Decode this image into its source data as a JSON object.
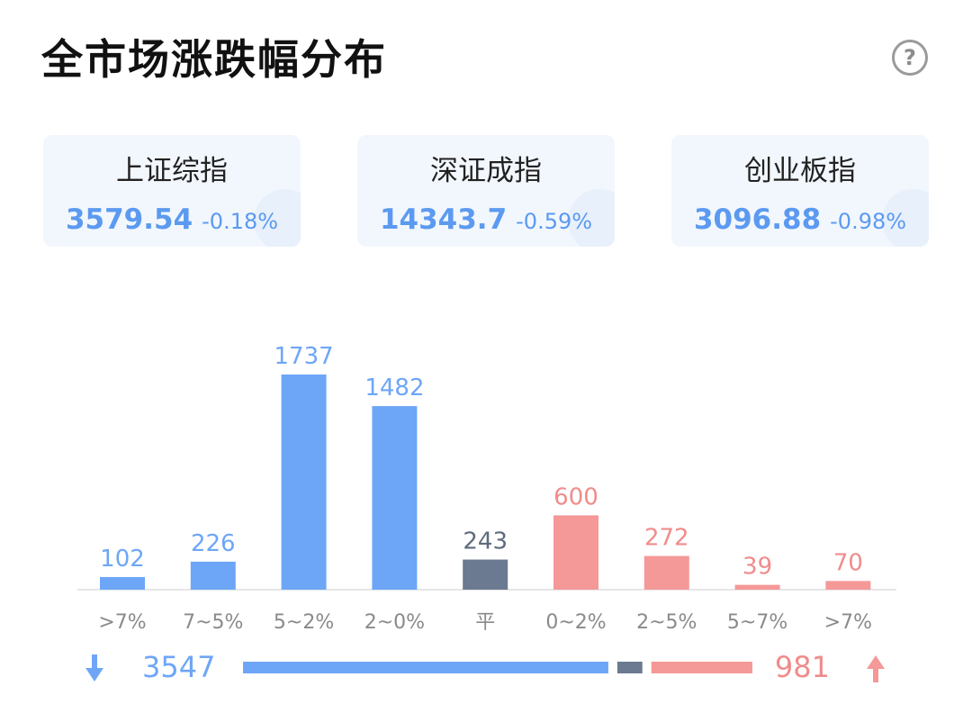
{
  "title": "全市场涨跌幅分布",
  "help_icon": "question-circle-icon",
  "indices": [
    {
      "name": "上证综指",
      "value": "3579.54",
      "change": "-0.18%"
    },
    {
      "name": "深证成指",
      "value": "14343.7",
      "change": "-0.59%"
    },
    {
      "name": "创业板指",
      "value": "3096.88",
      "change": "-0.98%"
    }
  ],
  "colors": {
    "down": "#6ea6f7",
    "flat": "#6b7a90",
    "up": "#f59898",
    "down_text": "#6ea6f7",
    "flat_text": "#5f6b7d",
    "up_text": "#f08c8c",
    "axis_text": "#8a8a8a"
  },
  "chart_data": {
    "type": "bar",
    "categories": [
      ">7%",
      "7~5%",
      "5~2%",
      "2~0%",
      "平",
      "0~2%",
      "2~5%",
      "5~7%",
      ">7%"
    ],
    "values": [
      102,
      226,
      1737,
      1482,
      243,
      600,
      272,
      39,
      70
    ],
    "groups": [
      "down",
      "down",
      "down",
      "down",
      "flat",
      "up",
      "up",
      "up",
      "up"
    ],
    "ylim": [
      0,
      1737
    ]
  },
  "summary": {
    "down_count": 3547,
    "down_label": "3547",
    "flat_count": 243,
    "up_count": 981,
    "up_label": "981",
    "down_icon": "arrow-down-icon",
    "up_icon": "arrow-up-icon"
  }
}
